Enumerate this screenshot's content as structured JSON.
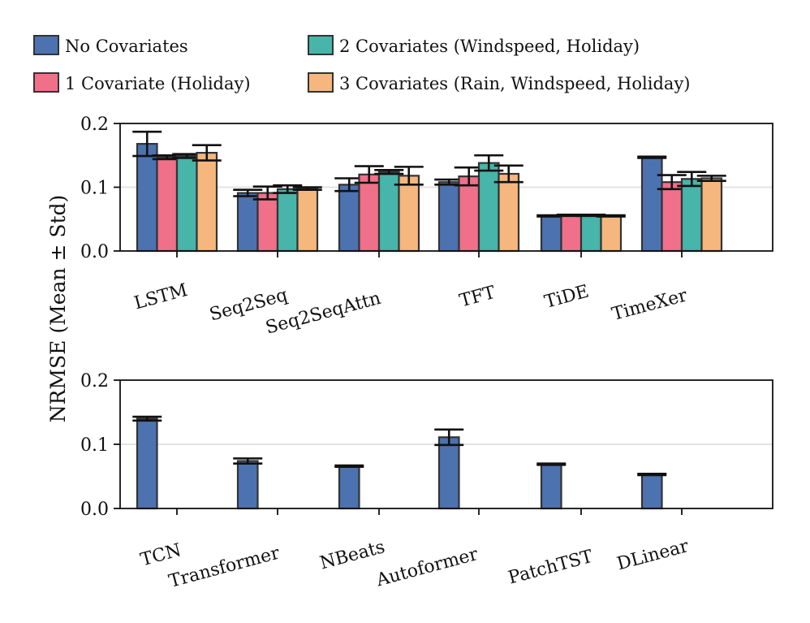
{
  "chart_data": [
    {
      "type": "bar",
      "categories": [
        "LSTM",
        "Seq2Seq",
        "Seq2SeqAttn",
        "TFT",
        "TiDE",
        "TimeXer"
      ],
      "series": [
        {
          "name": "No Covariates",
          "values": [
            0.168,
            0.091,
            0.104,
            0.108,
            0.055,
            0.147
          ],
          "errors": [
            0.019,
            0.005,
            0.01,
            0.004,
            0.001,
            0.001
          ]
        },
        {
          "name": "1 Covariate (Holiday)",
          "values": [
            0.147,
            0.091,
            0.12,
            0.117,
            0.056,
            0.108
          ],
          "errors": [
            0.003,
            0.01,
            0.013,
            0.014,
            0.001,
            0.011
          ]
        },
        {
          "name": "2 Covariates (Windspeed, Holiday)",
          "values": [
            0.149,
            0.097,
            0.124,
            0.138,
            0.056,
            0.113
          ],
          "errors": [
            0.003,
            0.006,
            0.003,
            0.012,
            0.001,
            0.011
          ]
        },
        {
          "name": "3 Covariates (Rain, Windspeed, Holiday)",
          "values": [
            0.154,
            0.098,
            0.118,
            0.121,
            0.055,
            0.114
          ],
          "errors": [
            0.012,
            0.002,
            0.014,
            0.013,
            0.001,
            0.004
          ]
        }
      ],
      "ylim": [
        0,
        0.2
      ],
      "yticks": [
        "0.0",
        "0.1",
        "0.2"
      ],
      "grid": true
    },
    {
      "type": "bar",
      "categories": [
        "TCN",
        "Transformer",
        "NBeats",
        "Autoformer",
        "PatchTST",
        "DLinear"
      ],
      "series": [
        {
          "name": "No Covariates",
          "values": [
            0.14,
            0.074,
            0.066,
            0.111,
            0.069,
            0.053
          ],
          "errors": [
            0.003,
            0.004,
            0.001,
            0.012,
            0.001,
            0.001
          ]
        }
      ],
      "ylim": [
        0,
        0.2
      ],
      "yticks": [
        "0.0",
        "0.1",
        "0.2"
      ],
      "grid": true
    }
  ],
  "ylabel": "NRMSE (Mean ± Std)",
  "legend": {
    "placement": "top",
    "items": [
      {
        "label": "No Covariates",
        "color": "#4c72b0"
      },
      {
        "label": "2 Covariates (Windspeed, Holiday)",
        "color": "#47b5a9"
      },
      {
        "label": "1 Covariate (Holiday)",
        "color": "#f0708a"
      },
      {
        "label": "3 Covariates (Rain, Windspeed, Holiday)",
        "color": "#f5b77d"
      }
    ]
  },
  "colors": [
    "#4c72b0",
    "#f0708a",
    "#47b5a9",
    "#f5b77d"
  ]
}
